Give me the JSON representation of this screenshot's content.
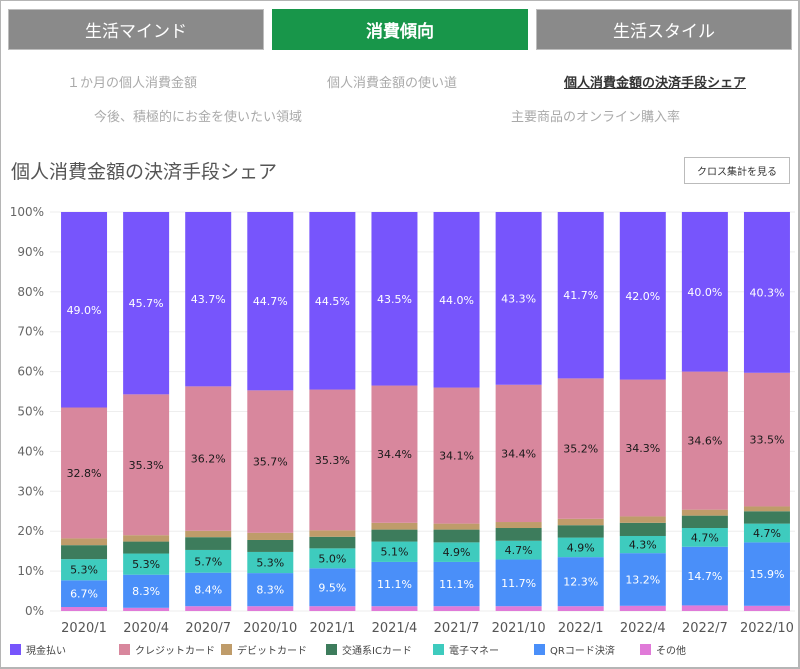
{
  "tabs": [
    {
      "label": "生活マインド",
      "active": false
    },
    {
      "label": "消費傾向",
      "active": true
    },
    {
      "label": "生活スタイル",
      "active": false
    }
  ],
  "sublinks": [
    {
      "label": "１か月の個人消費金額",
      "active": false
    },
    {
      "label": "個人消費金額の使い道",
      "active": false
    },
    {
      "label": "個人消費金額の決済手段シェア",
      "active": true
    },
    {
      "label": "今後、積極的にお金を使いたい領域",
      "active": false
    },
    {
      "label": "主要商品のオンライン購入率",
      "active": false
    }
  ],
  "section_title": "個人消費金額の決済手段シェア",
  "cross_button_label": "クロス集計を見る",
  "chart_data": {
    "type": "bar",
    "stacked": true,
    "title": "個人消費金額の決済手段シェア",
    "xlabel": "",
    "ylabel": "",
    "ylim": [
      0,
      100
    ],
    "yticks": [
      0,
      10,
      20,
      30,
      40,
      50,
      60,
      70,
      80,
      90,
      100
    ],
    "ytick_labels": [
      "0%",
      "10%",
      "20%",
      "30%",
      "40%",
      "50%",
      "60%",
      "70%",
      "80%",
      "90%",
      "100%"
    ],
    "grid": true,
    "legend_position": "bottom",
    "categories": [
      "2020/1",
      "2020/4",
      "2020/7",
      "2020/10",
      "2021/1",
      "2021/4",
      "2021/7",
      "2021/10",
      "2022/1",
      "2022/4",
      "2022/7",
      "2022/10"
    ],
    "series": [
      {
        "name": "その他",
        "color": "#e07ad8",
        "label_color": "",
        "values": [
          1.0,
          0.8,
          1.2,
          1.2,
          1.2,
          1.2,
          1.2,
          1.2,
          1.2,
          1.3,
          1.4,
          1.3
        ],
        "labeled": false
      },
      {
        "name": "QRコード決済",
        "color": "#4a8ff9",
        "label_color": "#ffffff",
        "values": [
          6.7,
          8.3,
          8.4,
          8.3,
          9.5,
          11.1,
          11.1,
          11.7,
          12.3,
          13.2,
          14.7,
          15.9
        ],
        "labeled": true
      },
      {
        "name": "電子マネー",
        "color": "#3ecbbe",
        "label_color": "#1a1a1a",
        "values": [
          5.3,
          5.3,
          5.7,
          5.3,
          5.0,
          5.1,
          4.9,
          4.7,
          4.9,
          4.3,
          4.7,
          4.7
        ],
        "labeled": true
      },
      {
        "name": "交通系ICカード",
        "color": "#3d7c5c",
        "label_color": "",
        "values": [
          3.5,
          3.0,
          3.2,
          3.0,
          2.9,
          3.0,
          3.2,
          3.2,
          3.1,
          3.3,
          3.1,
          3.1
        ],
        "labeled": false
      },
      {
        "name": "デビットカード",
        "color": "#bf9c6a",
        "label_color": "",
        "values": [
          1.7,
          1.6,
          1.6,
          1.8,
          1.6,
          1.7,
          1.5,
          1.5,
          1.6,
          1.6,
          1.5,
          1.2
        ],
        "labeled": false
      },
      {
        "name": "クレジットカード",
        "color": "#d8879d",
        "label_color": "#1a1a1a",
        "values": [
          32.8,
          35.3,
          36.2,
          35.7,
          35.3,
          34.4,
          34.1,
          34.4,
          35.2,
          34.3,
          34.6,
          33.5
        ],
        "labeled": true
      },
      {
        "name": "現金払い",
        "color": "#7755fc",
        "label_color": "#ffffff",
        "values": [
          49.0,
          45.7,
          43.7,
          44.7,
          44.5,
          43.5,
          44.0,
          43.3,
          41.7,
          42.0,
          40.0,
          40.3
        ],
        "labeled": true
      }
    ],
    "legend": [
      "現金払い",
      "クレジットカード",
      "デビットカード",
      "交通系ICカード",
      "電子マネー",
      "QRコード決済",
      "その他"
    ]
  }
}
